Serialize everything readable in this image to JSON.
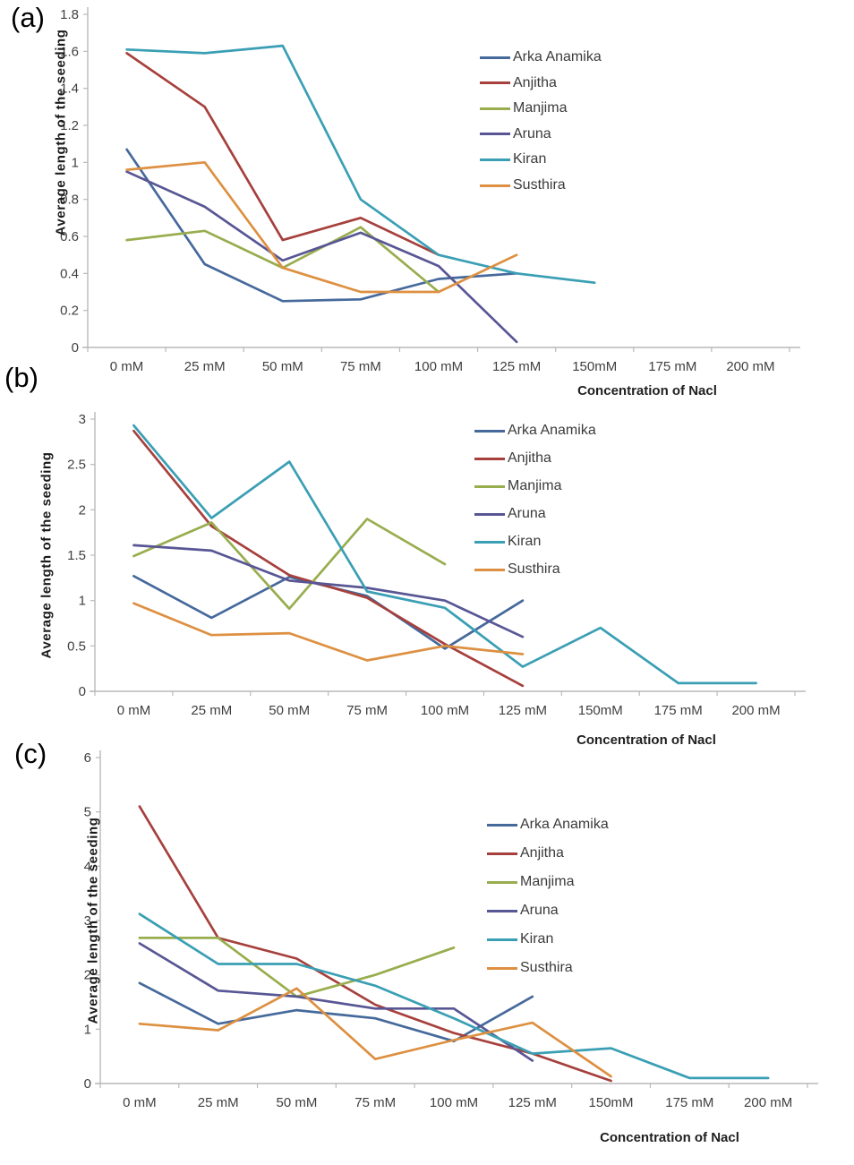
{
  "figure": {
    "background": "#ffffff",
    "axis_color": "#b9b9b9",
    "tick_label_color": "#3f3f3f"
  },
  "chart_data": [
    {
      "type": "line",
      "panel_label": "(a)",
      "ylabel": "Average length of the seeding",
      "xlabel": "Concentration of Nacl",
      "ylim": [
        0,
        1.8
      ],
      "y_ticks": [
        "0",
        "0.2",
        "0.4",
        "0.6",
        "0.8",
        "1",
        "1.2",
        "1.4",
        "1.6",
        "1.8"
      ],
      "categories": [
        "0 mM",
        "25 mM",
        "50 mM",
        "75 mM",
        "100 mM",
        "125 mM",
        "150mM",
        "175 mM",
        "200 mM"
      ],
      "grid": false,
      "legend_position": "inside-upper-right",
      "series": [
        {
          "name": "Arka Anamika",
          "color": "#46699c",
          "values": [
            1.07,
            0.45,
            0.25,
            0.26,
            0.37,
            0.4
          ]
        },
        {
          "name": "Anjitha",
          "color": "#a6403d",
          "values": [
            1.59,
            1.3,
            0.58,
            0.7,
            0.5
          ]
        },
        {
          "name": "Manjima",
          "color": "#98ad4e",
          "values": [
            0.58,
            0.63,
            0.43,
            0.65,
            0.3
          ]
        },
        {
          "name": "Aruna",
          "color": "#585694",
          "values": [
            0.95,
            0.76,
            0.47,
            0.62,
            0.44,
            0.03
          ]
        },
        {
          "name": "Kiran",
          "color": "#3a9fb4",
          "values": [
            1.61,
            1.59,
            1.63,
            0.8,
            0.5,
            0.4,
            0.35
          ]
        },
        {
          "name": "Susthira",
          "color": "#dd9041",
          "values": [
            0.96,
            1.0,
            0.43,
            0.3,
            0.3,
            0.5
          ]
        }
      ]
    },
    {
      "type": "line",
      "panel_label": "(b)",
      "ylabel": "Average length of the seeding",
      "xlabel": "Concentration of Nacl",
      "ylim": [
        0,
        3
      ],
      "y_ticks": [
        "0",
        "0.5",
        "1",
        "1.5",
        "2",
        "2.5",
        "3"
      ],
      "categories": [
        "0 mM",
        "25 mM",
        "50 mM",
        "75 mM",
        "100 mM",
        "125 mM",
        "150mM",
        "175 mM",
        "200 mM"
      ],
      "grid": false,
      "legend_position": "inside-upper-right",
      "series": [
        {
          "name": "Arka Anamika",
          "color": "#46699c",
          "values": [
            1.27,
            0.81,
            1.26,
            1.05,
            0.47,
            1.0
          ]
        },
        {
          "name": "Anjitha",
          "color": "#a6403d",
          "values": [
            2.87,
            1.82,
            1.28,
            1.03,
            0.52,
            0.06
          ]
        },
        {
          "name": "Manjima",
          "color": "#98ad4e",
          "values": [
            1.49,
            1.86,
            0.91,
            1.9,
            1.4
          ]
        },
        {
          "name": "Aruna",
          "color": "#585694",
          "values": [
            1.61,
            1.55,
            1.22,
            1.14,
            1.0,
            0.6
          ]
        },
        {
          "name": "Kiran",
          "color": "#3a9fb4",
          "values": [
            2.93,
            1.91,
            2.53,
            1.1,
            0.92,
            0.27,
            0.7,
            0.09,
            0.09
          ]
        },
        {
          "name": "Susthira",
          "color": "#dd9041",
          "values": [
            0.97,
            0.62,
            0.64,
            0.34,
            0.5,
            0.41
          ]
        }
      ]
    },
    {
      "type": "line",
      "panel_label": "(c)",
      "ylabel": "Average length of the seeding",
      "xlabel": "Concentration of Nacl",
      "ylim": [
        0,
        6
      ],
      "y_ticks": [
        "0",
        "1",
        "2",
        "3",
        "4",
        "5",
        "6"
      ],
      "categories": [
        "0 mM",
        "25 mM",
        "50 mM",
        "75 mM",
        "100 mM",
        "125 mM",
        "150mM",
        "175 mM",
        "200 mM"
      ],
      "grid": false,
      "legend_position": "inside-upper-right",
      "series": [
        {
          "name": "Arka Anamika",
          "color": "#46699c",
          "values": [
            1.85,
            1.1,
            1.35,
            1.2,
            0.78,
            1.6
          ]
        },
        {
          "name": "Anjitha",
          "color": "#a6403d",
          "values": [
            5.1,
            2.68,
            2.3,
            1.45,
            0.93,
            0.55,
            0.05
          ]
        },
        {
          "name": "Manjima",
          "color": "#98ad4e",
          "values": [
            2.68,
            2.68,
            1.6,
            2.0,
            2.5
          ]
        },
        {
          "name": "Aruna",
          "color": "#585694",
          "values": [
            2.58,
            1.71,
            1.6,
            1.38,
            1.38,
            0.42
          ]
        },
        {
          "name": "Kiran",
          "color": "#3a9fb4",
          "values": [
            3.12,
            2.2,
            2.2,
            1.8,
            1.2,
            0.55,
            0.65,
            0.1,
            0.1
          ]
        },
        {
          "name": "Susthira",
          "color": "#dd9041",
          "values": [
            1.1,
            0.98,
            1.75,
            0.45,
            0.8,
            1.12,
            0.13
          ]
        }
      ]
    }
  ]
}
